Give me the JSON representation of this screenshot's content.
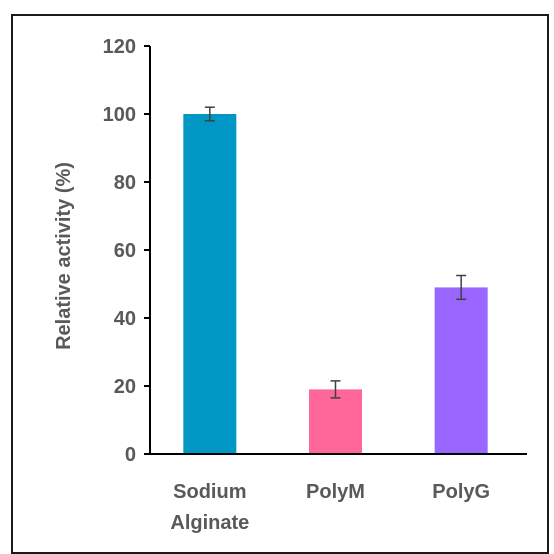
{
  "chart_data": {
    "type": "bar",
    "categories": [
      [
        "Sodium",
        "Alginate"
      ],
      [
        "PolyM"
      ],
      [
        "PolyG"
      ]
    ],
    "values": [
      100,
      19,
      49
    ],
    "errors": [
      2,
      2.5,
      3.5
    ],
    "colors": [
      "#0097c4",
      "#ff6699",
      "#9966ff"
    ],
    "ylabel": "Relative activity (%)",
    "ylim": [
      0,
      120
    ],
    "yticks": [
      0,
      20,
      40,
      60,
      80,
      100,
      120
    ],
    "grid": false
  }
}
